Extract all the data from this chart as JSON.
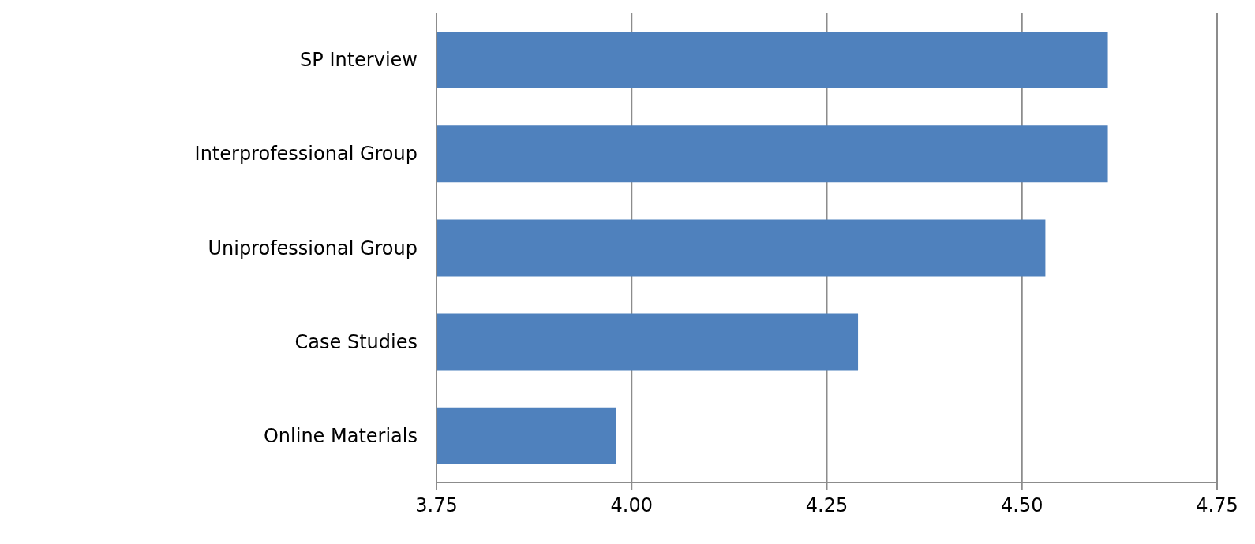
{
  "chart_data": {
    "type": "bar",
    "orientation": "horizontal",
    "categories": [
      "SP Interview",
      "Interprofessional Group",
      "Uniprofessional Group",
      "Case Studies",
      "Online Materials"
    ],
    "values": [
      4.61,
      4.61,
      4.53,
      4.29,
      3.98
    ],
    "color": "#4f81bd",
    "xlim": [
      3.75,
      4.75
    ],
    "xticks": [
      {
        "value": 3.75,
        "label": "3.75"
      },
      {
        "value": 4.0,
        "label": "4.00"
      },
      {
        "value": 4.25,
        "label": "4.25"
      },
      {
        "value": 4.5,
        "label": "4.50"
      },
      {
        "value": 4.75,
        "label": "4.75"
      }
    ],
    "grid": "x"
  }
}
